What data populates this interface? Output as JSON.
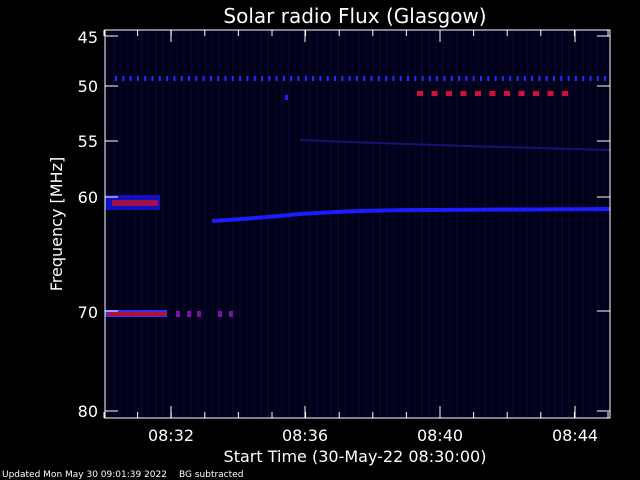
{
  "chart_data": {
    "type": "heatmap",
    "title": "Solar radio Flux (Glasgow)",
    "xlabel": "Start Time (30-May-22 08:30:00)",
    "ylabel": "Frequency [MHz]",
    "y_tick_labels": [
      "45",
      "50",
      "55",
      "60",
      "70",
      "80"
    ],
    "x_tick_labels": [
      "08:32",
      "08:36",
      "08:40",
      "08:44"
    ],
    "colors": {
      "background": "#000000",
      "plot_background": "#00001a",
      "low": "#0a0a5a",
      "mid": "#1414ff",
      "high": "#c80032",
      "axis": "#ffffff"
    }
  },
  "footer": {
    "updated": "Updated Mon May 30 09:01:39 2022",
    "note": "BG subtracted"
  }
}
